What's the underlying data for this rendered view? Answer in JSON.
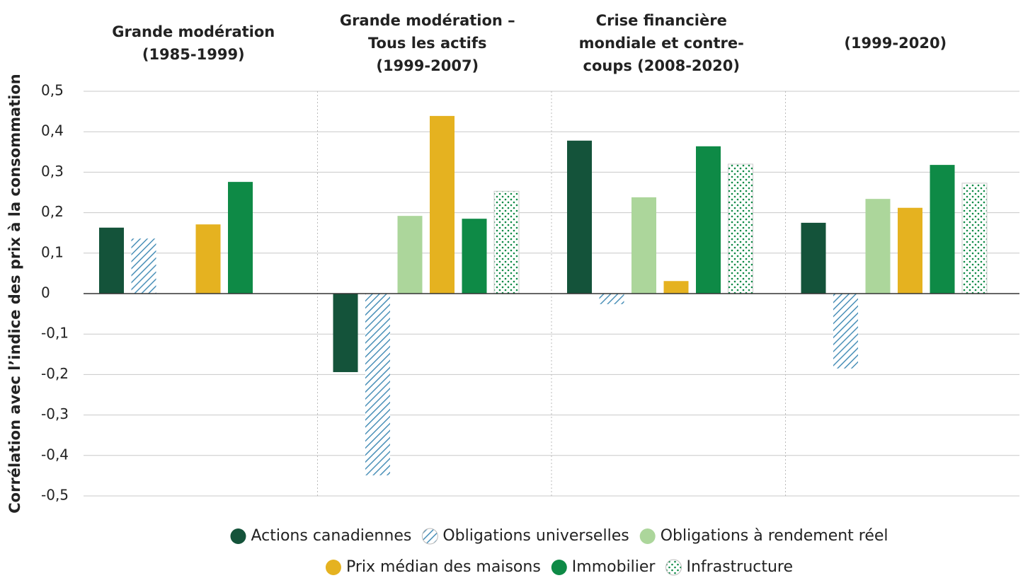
{
  "chart_data": {
    "type": "bar",
    "y_axis_label": "Corrélation avec l’indice des prix à la consommation",
    "categories": [
      [
        "Grande modération",
        "(1985-1999)"
      ],
      [
        "Grande modération –",
        "Tous les actifs",
        "(1999-2007)"
      ],
      [
        "Crise financière",
        "mondiale et contre-",
        "coups (2008-2020)"
      ],
      [
        "(1999-2020)"
      ]
    ],
    "series": [
      {
        "name": "Actions canadiennes",
        "color": "#14533a",
        "values": [
          0.163,
          -0.194,
          0.378,
          0.175
        ]
      },
      {
        "name": "Obligations universelles",
        "color": "#4a90b8",
        "pattern": "hatch",
        "values": [
          0.136,
          -0.449,
          -0.026,
          -0.185
        ]
      },
      {
        "name": "Obligations à rendement réel",
        "color": "#acd69b",
        "values": [
          null,
          0.192,
          0.238,
          0.234
        ]
      },
      {
        "name": "Prix médian des maisons",
        "color": "#e5b220",
        "values": [
          0.171,
          0.439,
          0.031,
          0.212
        ]
      },
      {
        "name": "Immobilier",
        "color": "#0e8a46",
        "values": [
          0.276,
          0.185,
          0.364,
          0.318
        ]
      },
      {
        "name": "Infrastructure",
        "color": "#0e8a46",
        "pattern": "dots",
        "values": [
          null,
          0.253,
          0.32,
          0.273
        ]
      }
    ],
    "ylim": [
      -0.5,
      0.5
    ],
    "yticks": [
      {
        "value": -0.5,
        "label": "-0,5"
      },
      {
        "value": -0.4,
        "label": "-0,4"
      },
      {
        "value": -0.3,
        "label": "-0,3"
      },
      {
        "value": -0.2,
        "label": "-0,2"
      },
      {
        "value": -0.1,
        "label": "-0,1"
      },
      0,
      {
        "value": 0.1,
        "label": "0,1"
      },
      {
        "value": 0.2,
        "label": "0,2"
      },
      {
        "value": 0.3,
        "label": "0,3"
      },
      {
        "value": 0.4,
        "label": "0,4"
      },
      {
        "value": 0.5,
        "label": "0,5"
      }
    ],
    "grid": true,
    "legend": "bottom"
  }
}
